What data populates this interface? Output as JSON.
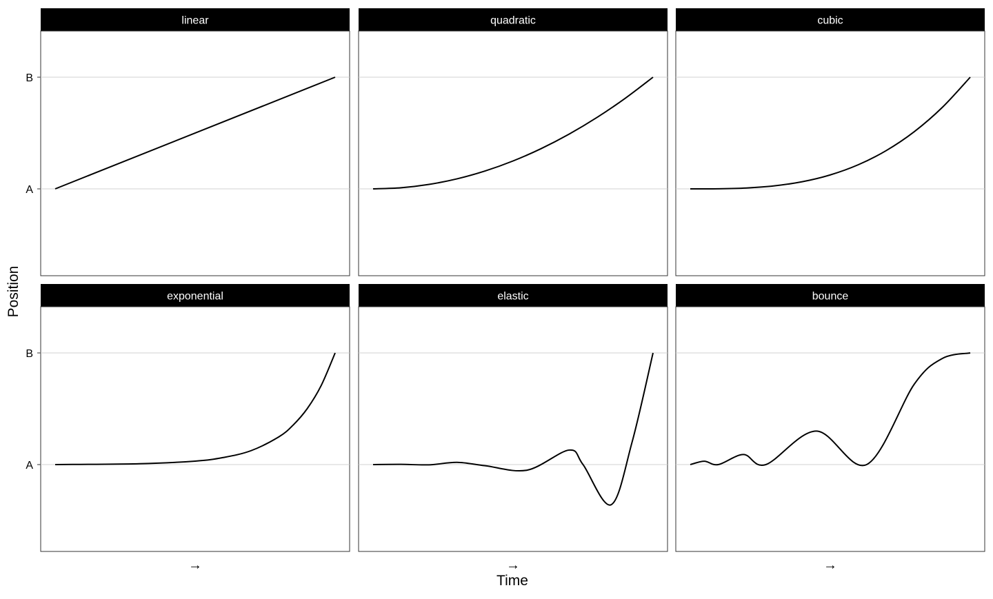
{
  "chart_data": {
    "type": "line",
    "xlabel": "Time",
    "ylabel": "Position",
    "y_ticks": [
      "A",
      "B"
    ],
    "x_tick_label": "→",
    "grid": "horizontal at A and B",
    "panels": [
      {
        "title": "linear",
        "points": [
          [
            0,
            0
          ],
          [
            1,
            1
          ]
        ]
      },
      {
        "title": "quadratic",
        "points": [
          [
            0,
            0
          ],
          [
            0.1,
            0.01
          ],
          [
            0.2,
            0.04
          ],
          [
            0.3,
            0.09
          ],
          [
            0.4,
            0.16
          ],
          [
            0.5,
            0.25
          ],
          [
            0.6,
            0.36
          ],
          [
            0.7,
            0.49
          ],
          [
            0.8,
            0.64
          ],
          [
            0.9,
            0.81
          ],
          [
            1,
            1
          ]
        ]
      },
      {
        "title": "cubic",
        "points": [
          [
            0,
            0
          ],
          [
            0.1,
            0.001
          ],
          [
            0.2,
            0.008
          ],
          [
            0.3,
            0.027
          ],
          [
            0.4,
            0.064
          ],
          [
            0.5,
            0.125
          ],
          [
            0.6,
            0.216
          ],
          [
            0.7,
            0.343
          ],
          [
            0.8,
            0.512
          ],
          [
            0.9,
            0.729
          ],
          [
            1,
            1
          ]
        ]
      },
      {
        "title": "exponential",
        "points": [
          [
            0,
            0
          ],
          [
            0.3,
            0.008
          ],
          [
            0.5,
            0.031
          ],
          [
            0.6,
            0.063
          ],
          [
            0.7,
            0.125
          ],
          [
            0.8,
            0.25
          ],
          [
            0.85,
            0.354
          ],
          [
            0.9,
            0.5
          ],
          [
            0.95,
            0.707
          ],
          [
            1,
            1
          ]
        ]
      },
      {
        "title": "elastic",
        "points": [
          [
            0,
            0
          ],
          [
            0.1,
            0.002
          ],
          [
            0.2,
            -0.002
          ],
          [
            0.3,
            0.02
          ],
          [
            0.4,
            -0.01
          ],
          [
            0.55,
            -0.05
          ],
          [
            0.7,
            0.13
          ],
          [
            0.75,
            0.0
          ],
          [
            0.85,
            -0.36
          ],
          [
            0.925,
            0.2
          ],
          [
            1,
            1
          ]
        ]
      },
      {
        "title": "bounce",
        "points": [
          [
            0,
            0
          ],
          [
            0.05,
            0.03
          ],
          [
            0.1,
            0.0
          ],
          [
            0.19,
            0.09
          ],
          [
            0.27,
            0.0
          ],
          [
            0.45,
            0.3
          ],
          [
            0.63,
            0.0
          ],
          [
            0.8,
            0.72
          ],
          [
            0.9,
            0.95
          ],
          [
            1,
            1
          ]
        ]
      }
    ]
  }
}
